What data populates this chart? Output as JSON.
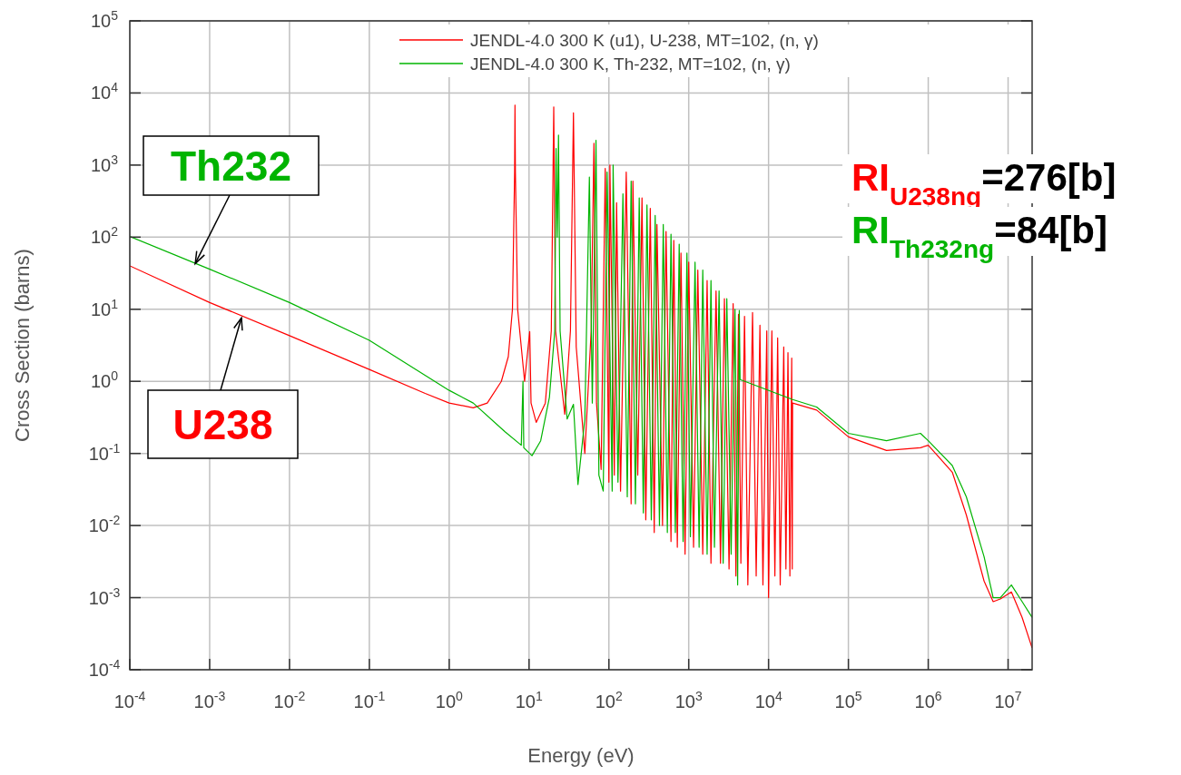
{
  "chart_data": {
    "type": "line",
    "xlabel": "Energy (eV)",
    "ylabel": "Cross Section (barns)",
    "log": "xy",
    "grid": true,
    "legend": "top right",
    "marker": "none",
    "line_style": "solid",
    "xlim": [
      0.0001,
      20000000
    ],
    "ylim": [
      0.0001,
      100000
    ],
    "xticks": [
      {
        "value": 0.0001,
        "label": "10$^{-4}$"
      },
      {
        "value": 0.001,
        "label": "10$^{-3}$"
      },
      {
        "value": 0.01,
        "label": "10$^{-2}$"
      },
      {
        "value": 0.1,
        "label": "10$^{-1}$"
      },
      {
        "value": 1,
        "label": "10$^{0}$"
      },
      {
        "value": 10,
        "label": "10$^{1}$"
      },
      {
        "value": 100,
        "label": "10$^{2}$"
      },
      {
        "value": 1000,
        "label": "10$^{3}$"
      },
      {
        "value": 10000,
        "label": "10$^{4}$"
      },
      {
        "value": 100000,
        "label": "10$^{5}$"
      },
      {
        "value": 1000000,
        "label": "10$^{6}$"
      },
      {
        "value": 10000000,
        "label": "10$^{7}$"
      }
    ],
    "yticks": [
      {
        "value": 0.0001,
        "label": "10$^{-4}$"
      },
      {
        "value": 0.001,
        "label": "10$^{-3}$"
      },
      {
        "value": 0.01,
        "label": "10$^{-2}$"
      },
      {
        "value": 0.1,
        "label": "10$^{-1}$"
      },
      {
        "value": 1,
        "label": "10$^{0}$"
      },
      {
        "value": 10,
        "label": "10$^{1}$"
      },
      {
        "value": 100,
        "label": "10$^{2}$"
      },
      {
        "value": 1000,
        "label": "10$^{3}$"
      },
      {
        "value": 10000,
        "label": "10$^{4}$"
      },
      {
        "value": 100000,
        "label": "10$^{5}$"
      }
    ],
    "series": [
      {
        "name": "JENDL-4.0  300 K (u1), U-238, MT=102, (n, γ)",
        "color": "#ff0000",
        "x": [
          0.0001,
          0.001,
          0.01,
          0.1,
          0.5,
          1,
          2,
          3,
          4.5,
          5.5,
          6.2,
          6.6,
          6.67,
          6.75,
          7.2,
          8.8,
          10.2,
          10.6,
          12.3,
          16,
          19,
          20.4,
          21.5,
          28,
          33,
          36,
          39,
          50,
          60,
          65,
          70,
          80,
          90,
          100,
          103,
          117,
          125,
          140,
          165,
          190,
          200,
          230,
          260,
          290,
          330,
          370,
          400,
          470,
          520,
          600,
          650,
          720,
          800,
          900,
          1000,
          1150,
          1300,
          1500,
          1700,
          1900,
          2200,
          2500,
          2800,
          3200,
          3600,
          3900,
          4200,
          4500,
          5000,
          5500,
          6300,
          7000,
          7800,
          8500,
          9500,
          10000,
          11000,
          12000,
          13000,
          14000,
          15500,
          16500,
          17500,
          18500,
          19500,
          19800,
          20000,
          40000,
          100000,
          300000,
          800000,
          1000000,
          2000000,
          3000000,
          5000000,
          6500000,
          8000000,
          11000000,
          15000000,
          20000000
        ],
        "values": [
          40,
          12.4,
          4.3,
          1.46,
          0.68,
          0.5,
          0.43,
          0.5,
          1.0,
          2.2,
          10,
          800,
          6800,
          800,
          10,
          1.0,
          4.9,
          0.5,
          0.27,
          0.5,
          5,
          6400,
          5,
          0.35,
          5,
          5300,
          3,
          0.1,
          5,
          2000,
          0.5,
          0.06,
          900,
          0.04,
          1000,
          0.05,
          300,
          0.03,
          800,
          0.02,
          600,
          0.05,
          350,
          0.012,
          250,
          0.008,
          150,
          0.01,
          120,
          0.006,
          90,
          0.005,
          60,
          0.004,
          45,
          0.005,
          35,
          0.004,
          25,
          0.003,
          18,
          0.003,
          14,
          0.0025,
          12,
          0.002,
          8.5,
          0.003,
          8,
          0.0015,
          9,
          0.002,
          6,
          0.0015,
          5,
          0.001,
          5,
          0.002,
          4,
          0.0015,
          3,
          0.0025,
          2.5,
          0.002,
          2.1,
          0.0025,
          0.5,
          0.4,
          0.17,
          0.11,
          0.12,
          0.13,
          0.055,
          0.014,
          0.0017,
          0.00088,
          0.00096,
          0.0012,
          0.00053,
          0.0002
        ]
      },
      {
        "name": "JENDL-4.0  300 K, Th-232, MT=102, (n, γ)",
        "color": "#00b400",
        "x": [
          0.0001,
          0.001,
          0.01,
          0.1,
          1,
          2,
          5,
          8,
          8.4,
          8.6,
          10.9,
          14,
          18,
          21,
          21.8,
          22.6,
          23.4,
          24.5,
          30,
          36,
          41,
          50,
          57,
          62,
          69,
          75,
          85,
          95,
          110,
          113,
          130,
          150,
          170,
          190,
          215,
          240,
          270,
          300,
          340,
          380,
          430,
          480,
          540,
          600,
          680,
          760,
          850,
          950,
          1050,
          1200,
          1350,
          1500,
          1700,
          1900,
          2100,
          2400,
          2700,
          3000,
          3400,
          3800,
          4100,
          4300,
          4400,
          20000,
          40000,
          100000,
          300000,
          800000,
          1000000,
          2000000,
          3000000,
          5000000,
          6500000,
          8000000,
          11000000,
          15000000,
          20000000
        ],
        "values": [
          102,
          36,
          12.4,
          3.7,
          0.75,
          0.5,
          0.2,
          0.13,
          1.0,
          0.12,
          0.093,
          0.15,
          0.6,
          5,
          1700,
          100,
          2600,
          5,
          0.3,
          0.48,
          0.037,
          0.3,
          680,
          0.5,
          2200,
          0.05,
          0.03,
          800,
          0.03,
          1000,
          0.04,
          400,
          0.025,
          600,
          0.02,
          350,
          0.015,
          280,
          0.012,
          200,
          0.01,
          150,
          0.008,
          110,
          0.008,
          80,
          0.006,
          60,
          0.007,
          45,
          0.005,
          35,
          0.004,
          25,
          0.005,
          18,
          0.003,
          14,
          0.004,
          10,
          0.0015,
          9.6,
          1.06,
          0.56,
          0.44,
          0.19,
          0.15,
          0.19,
          0.15,
          0.068,
          0.025,
          0.0037,
          0.001,
          0.001,
          0.0015,
          0.00088,
          0.00053
        ]
      }
    ],
    "annotations": [
      {
        "text": "U238",
        "x": 0.0025,
        "y": 7.6
      },
      {
        "text": "Th232",
        "x": 0.00066,
        "y": 43
      },
      "RI$_{U238ng}$=276[b]",
      "RI$_{Th232ng}$=84[b]"
    ]
  }
}
